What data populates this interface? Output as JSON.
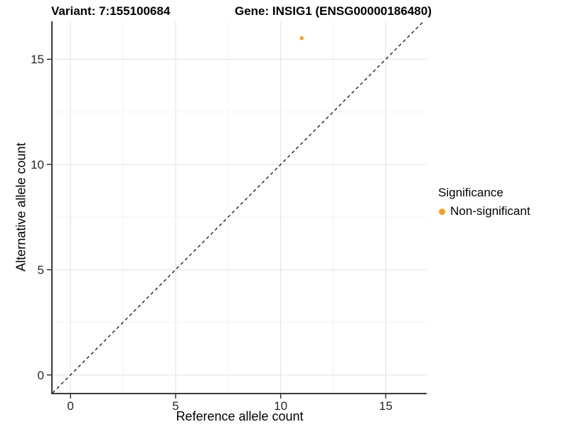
{
  "title": {
    "variant": "Variant: 7:155100684",
    "gene": "Gene: INSIG1 (ENSG00000186480)"
  },
  "chart_data": {
    "type": "scatter",
    "title": "Variant: 7:155100684    Gene: INSIG1 (ENSG00000186480)",
    "xlabel": "Reference allele count",
    "ylabel": "Alternative allele count",
    "xlim": [
      -0.85,
      16.95
    ],
    "ylim": [
      -0.85,
      16.8
    ],
    "x_major_ticks": [
      0,
      5,
      10,
      15
    ],
    "y_major_ticks": [
      0,
      5,
      10,
      15
    ],
    "x_minor_ticks": [
      2.5,
      7.5,
      12.5
    ],
    "y_minor_ticks": [
      2.5,
      7.5,
      12.5
    ],
    "grid": true,
    "series": [
      {
        "name": "Non-significant",
        "color": "#F8A028",
        "points": [
          {
            "x": 11,
            "y": 16
          }
        ]
      }
    ],
    "reference_line": {
      "type": "identity",
      "slope": 1,
      "intercept": 0,
      "style": "dashed",
      "color": "#111111"
    },
    "legend": {
      "title": "Significance",
      "position": "right",
      "entries": [
        {
          "label": "Non-significant",
          "color": "#F8A028",
          "marker": "circle"
        }
      ]
    }
  },
  "colors": {
    "point": "#F8A028",
    "grid_major": "#E7E7E7",
    "grid_minor": "#F1F1F1",
    "axis_line": "#3A3A3A",
    "tick_mark": "#333333",
    "tick_text": "#262626",
    "text": "#000000",
    "background": "#FFFFFF"
  }
}
